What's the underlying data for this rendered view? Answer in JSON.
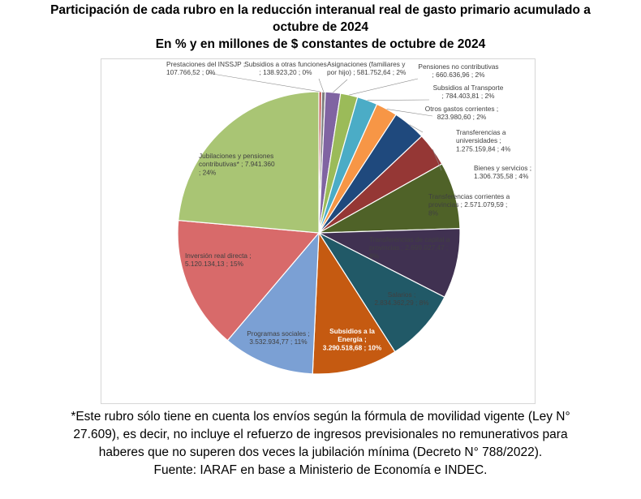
{
  "title": {
    "line1": "Participación de cada rubro en la reducción interanual real de gasto primario acumulado a",
    "line2": "octubre de 2024",
    "line3": "En % y en millones de $ constantes de octubre de 2024"
  },
  "footer": {
    "note_lines": [
      "*Este rubro sólo tiene en cuenta los envíos según la fórmula de movilidad vigente (Ley N°",
      "27.609), es decir, no incluye el refuerzo de ingresos previsionales no remunerativos para",
      "haberes que no superen dos veces la jubilación mínima (Decreto N° 788/2022).",
      "Fuente: IARAF en base a Ministerio de Economía e INDEC."
    ]
  },
  "chart_data": {
    "type": "pie",
    "start_angle_deg": 0,
    "direction": "clockwise",
    "slices": [
      {
        "name": "Prestaciones del INSSJP",
        "value": 107766.52,
        "value_label": "107.766,52",
        "pct_label": "0%",
        "color": "#c0504d",
        "label_lines": [
          "Prestaciones del INSSJP ;",
          "107.766,52 ; 0%"
        ]
      },
      {
        "name": "Subsidios a otras funciones",
        "value": 138923.2,
        "value_label": "138.923,20",
        "pct_label": "0%",
        "color": "#7f7f7f",
        "label_lines": [
          "Subsidios a otras funciones",
          "; 138.923,20 ; 0%"
        ]
      },
      {
        "name": "Asignaciones (familiares y por hijo)",
        "value": 581752.64,
        "value_label": "581.752,64",
        "pct_label": "2%",
        "color": "#8064a2",
        "label_lines": [
          "Asignaciones (familiares y",
          "por hijo) ; 581.752,64 ; 2%"
        ]
      },
      {
        "name": "Pensiones no contributivas",
        "value": 660636.96,
        "value_label": "660.636,96",
        "pct_label": "2%",
        "color": "#9bbb59",
        "label_lines": [
          "Pensiones no contributivas",
          "; 660.636,96 ; 2%"
        ]
      },
      {
        "name": "Subsidios al Transporte",
        "value": 784403.81,
        "value_label": "784.403,81",
        "pct_label": "2%",
        "color": "#4bacc6",
        "label_lines": [
          "Subsidios al Transporte",
          "; 784.403,81 ; 2%"
        ]
      },
      {
        "name": "Otros gastos corrientes",
        "value": 823980.6,
        "value_label": "823.980,60",
        "pct_label": "2%",
        "color": "#f79646",
        "label_lines": [
          "Otros gastos corrientes ;",
          "823.980,60 ; 2%"
        ]
      },
      {
        "name": "Transferencias a universidades",
        "value": 1275159.84,
        "value_label": "1.275.159,84",
        "pct_label": "4%",
        "color": "#1f497d",
        "label_lines": [
          "Transferencias a",
          "universidades ;",
          "1.275.159,84 ; 4%"
        ]
      },
      {
        "name": "Bienes y servicios",
        "value": 1306735.58,
        "value_label": "1.306.735,58",
        "pct_label": "4%",
        "color": "#953735",
        "label_lines": [
          "Bienes y servicios ;",
          "1.306.735,58 ; 4%"
        ]
      },
      {
        "name": "Transferencias corrientes a provincias",
        "value": 2571079.59,
        "value_label": "2.571.079,59",
        "pct_label": "8%",
        "color": "#4f6228",
        "label_lines": [
          "Transferencias corrientes a",
          "provincias ; 2.571.079,59 ;",
          "8%"
        ]
      },
      {
        "name": "Transferencias de capital a provincias",
        "value": 2699027.47,
        "value_label": "2.699.027,47",
        "pct_label": "8%",
        "color": "#403151",
        "label_lines": [
          "Transferencias de capital a",
          "provincias ; 2.699.027,47 ;",
          "8%"
        ]
      },
      {
        "name": "Salarios",
        "value": 2834362.29,
        "value_label": "2.834.362,29",
        "pct_label": "8%",
        "color": "#215967",
        "label_lines": [
          "Salarios ;",
          "2.834.362,29 ; 8%"
        ]
      },
      {
        "name": "Subsidios a la Energía",
        "value": 3290518.68,
        "value_label": "3.290.518,68",
        "pct_label": "10%",
        "color": "#c55a11",
        "label_lines": [
          "Subsidios a la",
          "Energía ;",
          "3.290.518,68 ; 10%"
        ]
      },
      {
        "name": "Programas sociales",
        "value": 3532934.77,
        "value_label": "3.532.934,77",
        "pct_label": "11%",
        "color": "#7ba0d4",
        "label_lines": [
          "Programas sociales ;",
          "3.532.934,77 ; 11%"
        ]
      },
      {
        "name": "Inversión real directa",
        "value": 5120134.13,
        "value_label": "5.120.134,13",
        "pct_label": "15%",
        "color": "#d86a6a",
        "label_lines": [
          "Inversión real directa ;",
          "5.120.134,13 ; 15%"
        ]
      },
      {
        "name": "Jubilaciones y pensiones contributivas*",
        "value": 7941360,
        "value_label": "7.941.360",
        "pct_label": "24%",
        "color": "#a9c574",
        "label_lines": [
          "Jubilaciones y pensiones",
          "contributivas* ; 7.941.360",
          "; 24%"
        ]
      }
    ]
  }
}
